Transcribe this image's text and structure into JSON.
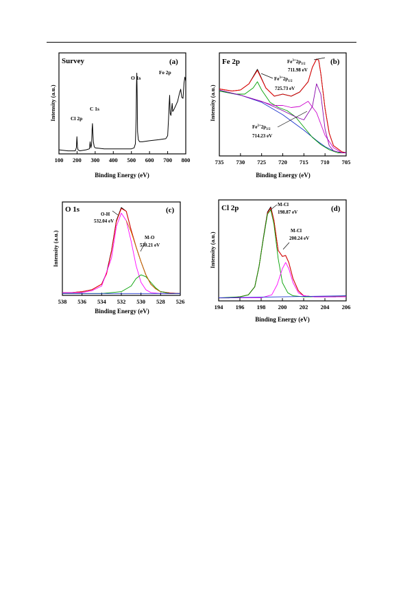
{
  "chart_data": [
    {
      "type": "line",
      "panel": "(a)",
      "title": "Survey",
      "xlabel": "Binding Energy (eV)",
      "ylabel": "Intensity (a.u.)",
      "xlim": [
        100,
        800
      ],
      "xticks": [
        "100",
        "200",
        "300",
        "400",
        "500",
        "600",
        "700",
        "800"
      ],
      "annotations": [
        {
          "text": "Cl 2p",
          "x": 200
        },
        {
          "text": "C 1s",
          "x": 285
        },
        {
          "text": "O 1s",
          "x": 530
        },
        {
          "text": "Fe 2p",
          "x": 711
        }
      ],
      "series": [
        {
          "color": "#000000",
          "x": [
            100,
            150,
            190,
            196,
            199,
            202,
            205,
            215,
            250,
            268,
            272,
            276,
            280,
            283,
            285,
            287,
            290,
            295,
            300,
            350,
            400,
            450,
            500,
            515,
            522,
            526,
            528,
            530,
            532,
            534,
            538,
            545,
            560,
            600,
            650,
            690,
            700,
            705,
            708,
            711,
            714,
            718,
            722,
            725,
            728,
            735,
            745,
            755,
            765,
            772,
            778,
            785,
            790,
            795,
            800
          ],
          "y": [
            4,
            3,
            3,
            6,
            17,
            7,
            4,
            3,
            4,
            5,
            12,
            6,
            9,
            25,
            30,
            22,
            12,
            7,
            6,
            5,
            5,
            5,
            5,
            6,
            10,
            35,
            68,
            80,
            55,
            22,
            14,
            12,
            12,
            13,
            14,
            15,
            18,
            35,
            48,
            58,
            40,
            38,
            45,
            50,
            42,
            44,
            48,
            52,
            60,
            64,
            56,
            55,
            70,
            76,
            72
          ]
        }
      ]
    },
    {
      "type": "line",
      "panel": "(b)",
      "title": "Fe 2p",
      "xlabel": "Binding Energy (eV)",
      "ylabel": "Intensity (a.u.)",
      "xlim": [
        735,
        705
      ],
      "xticks": [
        "735",
        "730",
        "725",
        "720",
        "715",
        "710",
        "705"
      ],
      "annotations": [
        {
          "text": "Fe3+2p3/2",
          "value": "711.98 eV"
        },
        {
          "text": "Fe3+2p1/2",
          "value": "725.73 eV"
        },
        {
          "text": "Fe2+2p3/2",
          "value": "714.23 eV"
        }
      ],
      "series": [
        {
          "color": "#000000",
          "x": [
            735,
            732,
            730,
            728,
            726,
            724,
            722,
            720,
            718,
            716,
            714,
            713,
            712,
            711.5,
            711,
            710,
            709,
            708,
            706,
            705
          ],
          "y": [
            65,
            63,
            64,
            70,
            84,
            66,
            58,
            60,
            58,
            62,
            72,
            86,
            94,
            93,
            80,
            46,
            22,
            10,
            4,
            3
          ]
        },
        {
          "color": "#ff0000",
          "x": [
            735,
            732,
            730,
            728,
            726,
            724,
            722,
            720,
            718,
            716,
            714,
            713,
            712,
            711.5,
            711,
            710,
            709,
            708,
            706,
            705
          ],
          "y": [
            65,
            63,
            64,
            70,
            83,
            66,
            58,
            60,
            58,
            62,
            72,
            86,
            94,
            93,
            80,
            46,
            22,
            10,
            4,
            3
          ]
        },
        {
          "color": "#1a33cc",
          "x": [
            735,
            730,
            725,
            720,
            715,
            712,
            710,
            708,
            706,
            705
          ],
          "y": [
            63,
            59,
            52,
            40,
            25,
            15,
            9,
            5,
            3,
            3
          ]
        },
        {
          "color": "#00a000",
          "x": [
            735,
            731,
            729,
            727,
            726,
            725,
            723,
            721,
            719,
            717,
            715,
            713,
            711,
            709,
            707,
            705
          ],
          "y": [
            63,
            60,
            60,
            66,
            72,
            64,
            52,
            47,
            44,
            38,
            28,
            18,
            11,
            6,
            3,
            3
          ]
        },
        {
          "color": "#cc00cc",
          "x": [
            735,
            730,
            726,
            722,
            720,
            718,
            716,
            714,
            712,
            710,
            708,
            706,
            705
          ],
          "y": [
            64,
            59,
            54,
            49,
            49,
            47,
            48,
            53,
            42,
            20,
            8,
            3,
            3
          ]
        },
        {
          "color": "#8800aa",
          "x": [
            735,
            730,
            725,
            720,
            717,
            715,
            713,
            712,
            711,
            710,
            709,
            708,
            706,
            705
          ],
          "y": [
            64,
            59,
            53,
            44,
            38,
            35,
            48,
            70,
            60,
            26,
            10,
            5,
            3,
            3
          ]
        }
      ]
    },
    {
      "type": "line",
      "panel": "(c)",
      "title": "O 1s",
      "xlabel": "Binding Energy (eV)",
      "ylabel": "Intensity (a.u.)",
      "xlim": [
        538,
        526
      ],
      "xticks": [
        "538",
        "536",
        "534",
        "532",
        "530",
        "528",
        "526"
      ],
      "annotations": [
        {
          "text": "O-H",
          "value": "532.04 eV"
        },
        {
          "text": "M-O",
          "value": "530.21 eV"
        }
      ],
      "series": [
        {
          "color": "#000000",
          "x": [
            538,
            537,
            536,
            535,
            534,
            533.5,
            533,
            532.5,
            532,
            531.5,
            531,
            530.5,
            530,
            529.5,
            529,
            528.5,
            528,
            527,
            526
          ],
          "y": [
            3,
            3,
            4,
            6,
            12,
            24,
            48,
            80,
            94,
            90,
            70,
            52,
            36,
            22,
            12,
            7,
            4,
            2.5,
            2
          ]
        },
        {
          "color": "#ff0000",
          "x": [
            538,
            537,
            536,
            535,
            534,
            533.5,
            533,
            532.5,
            532,
            531.5,
            531,
            530.5,
            530,
            529.5,
            529,
            528.5,
            528,
            527,
            526
          ],
          "y": [
            3,
            3,
            4,
            6,
            12,
            23,
            47,
            79,
            93,
            90,
            70,
            52,
            36,
            22,
            12,
            7,
            4,
            2.5,
            2
          ]
        },
        {
          "color": "#ff00ff",
          "x": [
            538,
            536,
            535,
            534,
            533,
            532.5,
            532,
            531.5,
            531,
            530.5,
            530,
            529.5,
            529,
            528,
            526
          ],
          "y": [
            3,
            3,
            5,
            10,
            40,
            74,
            88,
            80,
            58,
            32,
            14,
            6,
            3,
            2,
            2
          ]
        },
        {
          "color": "#00a000",
          "x": [
            538,
            534,
            532,
            531,
            530.5,
            530,
            529.5,
            529,
            528.5,
            528,
            527,
            526
          ],
          "y": [
            2,
            2,
            4,
            10,
            18,
            22,
            20,
            14,
            8,
            4,
            2,
            2
          ]
        },
        {
          "color": "#1a33cc",
          "x": [
            538,
            526
          ],
          "y": [
            2,
            2
          ]
        },
        {
          "color": "#c87800",
          "x": [
            531.5,
            531,
            530.5,
            530,
            529.5,
            529,
            528.5,
            528
          ],
          "y": [
            80,
            68,
            52,
            36,
            22,
            12,
            7,
            4
          ]
        }
      ]
    },
    {
      "type": "line",
      "panel": "(d)",
      "title": "Cl 2p",
      "xlabel": "Binding Energy (eV)",
      "ylabel": "Intensity (a.u.)",
      "xlim": [
        194,
        206
      ],
      "xticks": [
        "194",
        "196",
        "198",
        "200",
        "202",
        "204",
        "206"
      ],
      "annotations": [
        {
          "text": "M-Cl",
          "value": "198.87 eV"
        },
        {
          "text": "M-Cl",
          "value": "200.24 eV"
        }
      ],
      "series": [
        {
          "color": "#000000",
          "x": [
            194,
            195,
            196,
            196.8,
            197.4,
            197.8,
            198.2,
            198.6,
            198.9,
            199.2,
            199.6,
            200,
            200.3,
            200.6,
            201,
            201.5,
            202,
            203,
            204,
            205,
            206
          ],
          "y": [
            3,
            3,
            4,
            6,
            14,
            34,
            62,
            88,
            93,
            80,
            50,
            44,
            45,
            38,
            22,
            10,
            5,
            4,
            4,
            4,
            5
          ]
        },
        {
          "color": "#ff0000",
          "x": [
            194,
            195,
            196,
            196.8,
            197.4,
            197.8,
            198.2,
            198.6,
            198.9,
            199.2,
            199.6,
            200,
            200.3,
            200.6,
            201,
            201.5,
            202,
            203,
            204,
            205,
            206
          ],
          "y": [
            3,
            3,
            4,
            6,
            14,
            34,
            61,
            87,
            92,
            80,
            50,
            44,
            45,
            38,
            22,
            10,
            5,
            4,
            4,
            4,
            5
          ]
        },
        {
          "color": "#00a000",
          "x": [
            194,
            196,
            196.8,
            197.4,
            197.8,
            198.2,
            198.6,
            198.9,
            199.2,
            199.6,
            200,
            200.5,
            201,
            202,
            204,
            206
          ],
          "y": [
            3,
            4,
            6,
            14,
            34,
            61,
            86,
            90,
            76,
            42,
            18,
            8,
            5,
            4,
            4,
            5
          ]
        },
        {
          "color": "#ff00ff",
          "x": [
            194,
            198,
            199,
            199.5,
            200,
            200.3,
            200.6,
            201,
            201.5,
            202,
            203,
            206
          ],
          "y": [
            3,
            3,
            6,
            16,
            32,
            38,
            32,
            18,
            8,
            5,
            4,
            4
          ]
        },
        {
          "color": "#1a33cc",
          "x": [
            194,
            200,
            206
          ],
          "y": [
            3,
            4,
            5
          ]
        }
      ]
    }
  ]
}
